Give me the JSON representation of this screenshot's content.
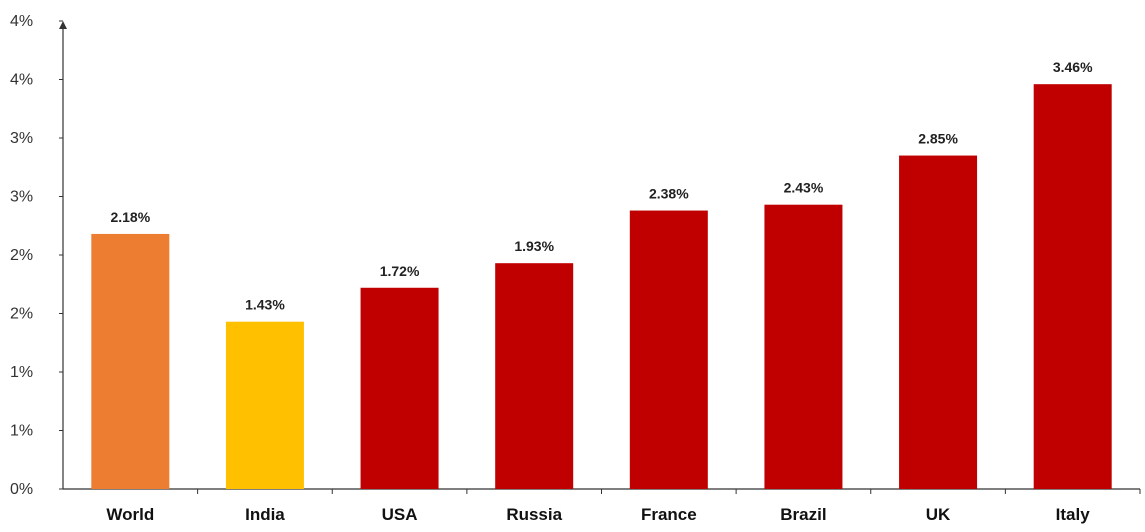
{
  "chart_data": {
    "type": "bar",
    "title": "",
    "xlabel": "",
    "ylabel": "",
    "categories": [
      "World",
      "India",
      "USA",
      "Russia",
      "France",
      "Brazil",
      "UK",
      "Italy"
    ],
    "values": [
      2.18,
      1.43,
      1.72,
      1.93,
      2.38,
      2.43,
      2.85,
      3.46
    ],
    "data_labels": [
      "2.18%",
      "1.43%",
      "1.72%",
      "1.93%",
      "2.38%",
      "2.43%",
      "2.85%",
      "3.46%"
    ],
    "bar_colors": [
      "#ED7D31",
      "#FFC000",
      "#C00000",
      "#C00000",
      "#C00000",
      "#C00000",
      "#C00000",
      "#C00000"
    ],
    "y_tick_values": [
      0,
      0.5,
      1,
      1.5,
      2,
      2.5,
      3,
      3.5,
      4
    ],
    "y_tick_labels": [
      "0%",
      "1%",
      "1%",
      "2%",
      "2%",
      "3%",
      "3%",
      "4%",
      "4%"
    ],
    "ylim": [
      0,
      4
    ],
    "grid": false,
    "legend": "none"
  }
}
